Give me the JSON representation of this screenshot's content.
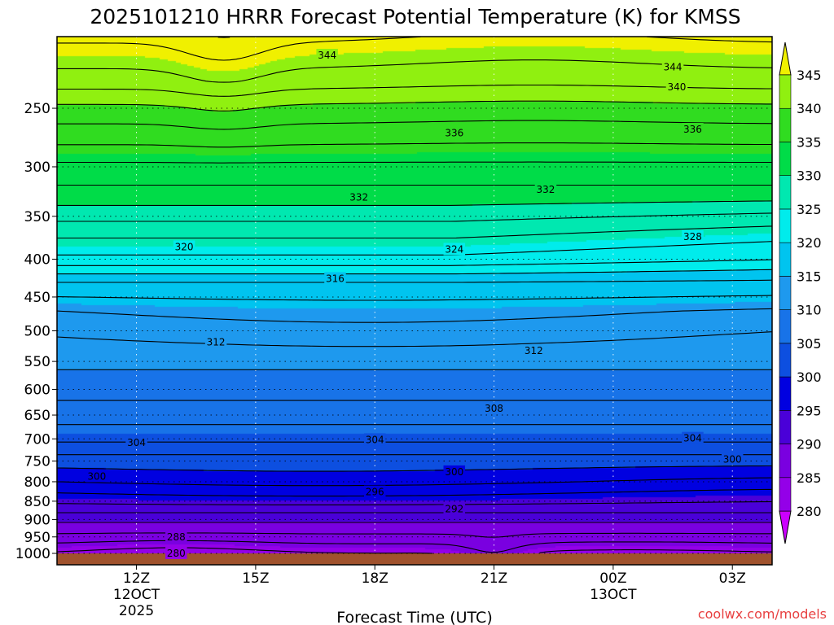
{
  "chart_data": {
    "type": "contour",
    "title": "2025101210 HRRR Forecast Potential Temperature (K) for KMSS",
    "xlabel": "Forecast Time (UTC)",
    "ylabel": "",
    "source": "coolwx.com/models",
    "variable": "Potential Temperature",
    "units": "K",
    "y_scale": "log-pressure (inverted)",
    "ylim": [
      1000,
      200
    ],
    "y_ticks": [
      250,
      300,
      350,
      400,
      450,
      500,
      550,
      600,
      650,
      700,
      750,
      800,
      850,
      900,
      950,
      1000
    ],
    "x_ticks": [
      {
        "hour": 12,
        "label": "12Z",
        "sub1": "12OCT",
        "sub2": "2025"
      },
      {
        "hour": 15,
        "label": "15Z",
        "sub1": "",
        "sub2": ""
      },
      {
        "hour": 18,
        "label": "18Z",
        "sub1": "",
        "sub2": ""
      },
      {
        "hour": 21,
        "label": "21Z",
        "sub1": "",
        "sub2": ""
      },
      {
        "hour": 24,
        "label": "00Z",
        "sub1": "13OCT",
        "sub2": ""
      },
      {
        "hour": 27,
        "label": "03Z",
        "sub1": "",
        "sub2": ""
      }
    ],
    "xlim_hours": [
      10,
      28
    ],
    "grid": true,
    "contour_interval": 2,
    "colorbar": {
      "position": "right",
      "levels": [
        280,
        285,
        290,
        295,
        300,
        305,
        310,
        315,
        320,
        325,
        330,
        335,
        340,
        345
      ],
      "colors": [
        "#cc00ff",
        "#9400e8",
        "#7a00e0",
        "#4a00d8",
        "#0000e0",
        "#0d4fe0",
        "#1873e8",
        "#1e99ee",
        "#00c4ef",
        "#00ecec",
        "#00e8b0",
        "#00dc48",
        "#30dc20",
        "#90f010",
        "#f0f000"
      ]
    },
    "contour_labels": [
      {
        "time": 16.8,
        "p": 212,
        "value": "344"
      },
      {
        "time": 25.5,
        "p": 220,
        "value": "344"
      },
      {
        "time": 25.6,
        "p": 234,
        "value": "340"
      },
      {
        "time": 20.0,
        "p": 270,
        "value": "336"
      },
      {
        "time": 26.0,
        "p": 267,
        "value": "336"
      },
      {
        "time": 17.6,
        "p": 330,
        "value": "332"
      },
      {
        "time": 22.3,
        "p": 322,
        "value": "332"
      },
      {
        "time": 26.0,
        "p": 373,
        "value": "328"
      },
      {
        "time": 20.0,
        "p": 388,
        "value": "324"
      },
      {
        "time": 13.2,
        "p": 385,
        "value": "320"
      },
      {
        "time": 17.0,
        "p": 425,
        "value": "316"
      },
      {
        "time": 14.0,
        "p": 518,
        "value": "312"
      },
      {
        "time": 22.0,
        "p": 532,
        "value": "312"
      },
      {
        "time": 21.0,
        "p": 637,
        "value": "308"
      },
      {
        "time": 12.0,
        "p": 708,
        "value": "304"
      },
      {
        "time": 18.0,
        "p": 702,
        "value": "304"
      },
      {
        "time": 26.0,
        "p": 699,
        "value": "304"
      },
      {
        "time": 11.0,
        "p": 787,
        "value": "300"
      },
      {
        "time": 20.0,
        "p": 776,
        "value": "300"
      },
      {
        "time": 27.0,
        "p": 746,
        "value": "300"
      },
      {
        "time": 18.0,
        "p": 826,
        "value": "296"
      },
      {
        "time": 20.0,
        "p": 871,
        "value": "292"
      },
      {
        "time": 13.0,
        "p": 951,
        "value": "288"
      },
      {
        "time": 13.0,
        "p": 1000,
        "value": "280"
      }
    ]
  }
}
